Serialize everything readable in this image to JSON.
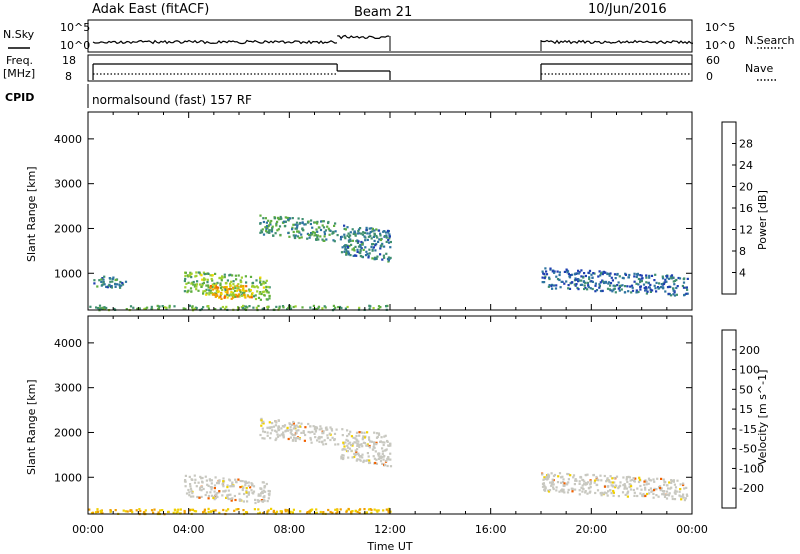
{
  "header": {
    "radar": "Adak East (fitACF)",
    "beam": "Beam 21",
    "date": "10/Jun/2016"
  },
  "top_panels": {
    "nsky_label": "N.Sky",
    "nsearch_label": "N.Search",
    "freq_label_1": "Freq.",
    "freq_label_2": "[MHz]",
    "nave_label": "Nave",
    "cpid_label": "CPID",
    "cpid_value": "normalsound (fast) 157 RF",
    "noise_ticks_left": [
      "10^5",
      "10^0"
    ],
    "noise_ticks_right": [
      "10^5",
      "10^0"
    ],
    "freq_ticks": [
      "18",
      "8"
    ],
    "nave_ticks": [
      "60",
      "0"
    ]
  },
  "chart_data": [
    {
      "type": "heatmap",
      "title": "",
      "xlabel": "",
      "ylabel": "Slant Range [km]",
      "xlim": [
        0,
        24
      ],
      "ylim": [
        180,
        4600
      ],
      "yticks": [
        "1000",
        "2000",
        "3000",
        "4000"
      ],
      "colorbar": {
        "label": "Power [dB]",
        "range": [
          0,
          32
        ],
        "ticks": [
          "4",
          "8",
          "12",
          "16",
          "20",
          "24",
          "28"
        ],
        "colors": [
          "#0000ff",
          "#1f3fb0",
          "#2e74a0",
          "#3f8f6f",
          "#5fae3f",
          "#9fd030",
          "#f0d800",
          "#f0a000",
          "#f06800",
          "#e82000",
          "#ff0000"
        ]
      },
      "echo_regions": [
        {
          "t_start": 0.2,
          "t_end": 1.5,
          "r_min": 700,
          "r_max": 950,
          "level": 8
        },
        {
          "t_start": 3.8,
          "t_end": 7.2,
          "r_min": 500,
          "r_max": 1000,
          "level": 14
        },
        {
          "t_start": 4.8,
          "t_end": 6.5,
          "r_min": 450,
          "r_max": 750,
          "level": 22
        },
        {
          "t_start": 6.8,
          "t_end": 9.9,
          "r_min": 1800,
          "r_max": 2250,
          "level": 10
        },
        {
          "t_start": 10.0,
          "t_end": 12.0,
          "r_min": 1350,
          "r_max": 2050,
          "level": 8
        },
        {
          "t_start": 18.0,
          "t_end": 23.8,
          "r_min": 600,
          "r_max": 1050,
          "level": 6
        },
        {
          "t_start": 0.0,
          "t_end": 12.0,
          "r_min": 200,
          "r_max": 300,
          "level": 12
        }
      ]
    },
    {
      "type": "heatmap",
      "title": "",
      "xlabel": "Time UT",
      "ylabel": "Slant Range [km]",
      "xlim": [
        0,
        24
      ],
      "ylim": [
        180,
        4600
      ],
      "xticks": [
        "00:00",
        "04:00",
        "08:00",
        "12:00",
        "16:00",
        "20:00",
        "00:00"
      ],
      "yticks": [
        "1000",
        "2000",
        "3000",
        "4000"
      ],
      "colorbar": {
        "label": "Velocity [m s^-1]",
        "ticks": [
          "200",
          "100",
          "50",
          "15",
          "-15",
          "-50",
          "-100",
          "-200"
        ],
        "colors": [
          "#1f3fb0",
          "#2e74a0",
          "#3f8f6f",
          "#5fae3f",
          "#c8c8c0",
          "#f0d000",
          "#f0a000",
          "#f06000",
          "#e81010"
        ]
      },
      "echo_regions": [
        {
          "t_start": 3.8,
          "t_end": 7.2,
          "r_min": 500,
          "r_max": 1000,
          "class": "ground"
        },
        {
          "t_start": 6.8,
          "t_end": 9.9,
          "r_min": 1800,
          "r_max": 2250,
          "class": "ground"
        },
        {
          "t_start": 10.0,
          "t_end": 12.0,
          "r_min": 1350,
          "r_max": 2050,
          "class": "ground"
        },
        {
          "t_start": 18.0,
          "t_end": 23.8,
          "r_min": 600,
          "r_max": 1050,
          "class": "ground"
        },
        {
          "t_start": 0.0,
          "t_end": 12.0,
          "r_min": 200,
          "r_max": 320,
          "class": "negative"
        }
      ]
    }
  ]
}
